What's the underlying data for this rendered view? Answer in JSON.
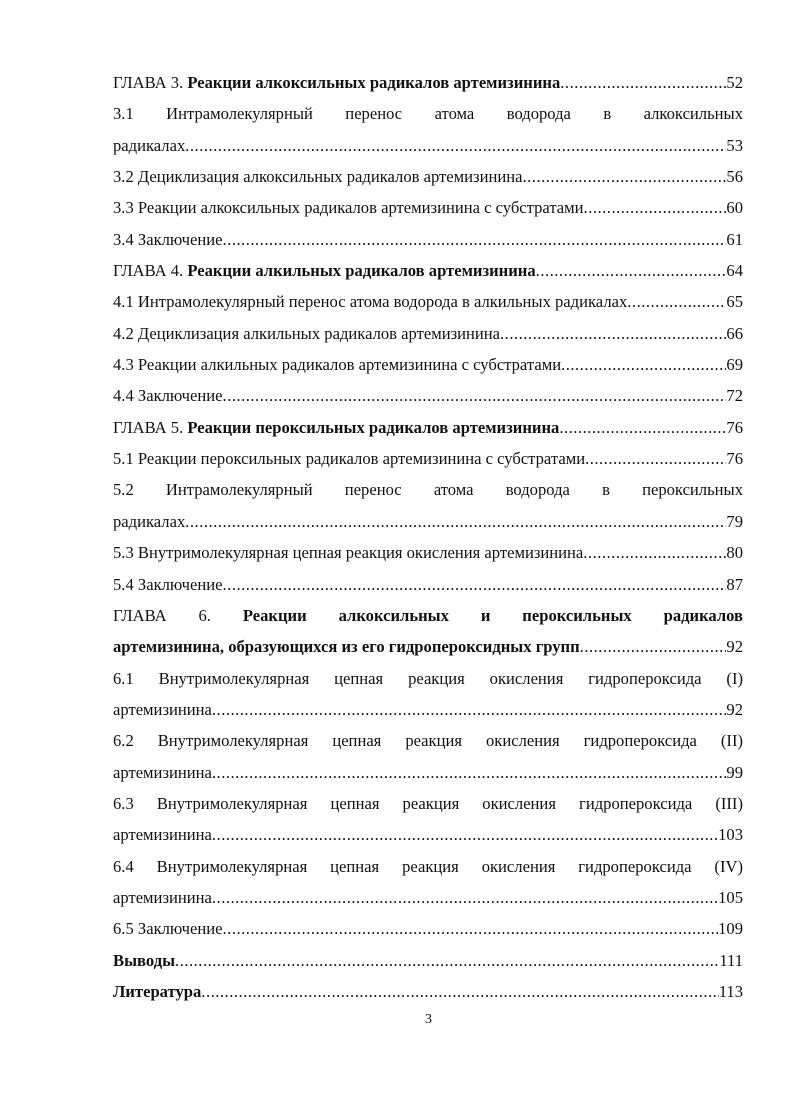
{
  "toc": [
    {
      "lines": [
        {
          "prefix": "ГЛАВА 3. ",
          "bold": "Реакции алкоксильных радикалов артемизинина "
        }
      ],
      "page": "52"
    },
    {
      "lines": [
        {
          "prefix": "3.1 Интрамолекулярный перенос атома водорода в алкоксильных"
        },
        {
          "prefix": "радикалах"
        }
      ],
      "page": "53"
    },
    {
      "lines": [
        {
          "prefix": "3.2 Дециклизация алкоксильных радикалов артемизинина"
        }
      ],
      "page": "56"
    },
    {
      "lines": [
        {
          "prefix": "3.3 Реакции алкоксильных радикалов артемизинина с субстратами"
        }
      ],
      "page": "60"
    },
    {
      "lines": [
        {
          "prefix": "3.4 Заключение"
        }
      ],
      "page": "61"
    },
    {
      "lines": [
        {
          "prefix": "ГЛАВА 4. ",
          "bold": "Реакции алкильных радикалов артемизинина "
        }
      ],
      "page": "64"
    },
    {
      "lines": [
        {
          "prefix": "4.1 Интрамолекулярный перенос атома водорода в алкильных радикалах"
        }
      ],
      "page": "65"
    },
    {
      "lines": [
        {
          "prefix": "4.2 Дециклизация алкильных радикалов артемизинина"
        }
      ],
      "page": "66"
    },
    {
      "lines": [
        {
          "prefix": "4.3 Реакции алкильных радикалов артемизинина с субстратами"
        }
      ],
      "page": "69"
    },
    {
      "lines": [
        {
          "prefix": "4.4 Заключение"
        }
      ],
      "page": "72"
    },
    {
      "lines": [
        {
          "prefix": "ГЛАВА 5. ",
          "bold": "Реакции пероксильных радикалов артемизинина "
        }
      ],
      "page": "76"
    },
    {
      "lines": [
        {
          "prefix": "5.1 Реакции пероксильных радикалов артемизинина с субстратами"
        }
      ],
      "page": "76"
    },
    {
      "lines": [
        {
          "prefix": "5.2 Интрамолекулярный перенос атома водорода в пероксильных"
        },
        {
          "prefix": "радикалах"
        }
      ],
      "page": "79"
    },
    {
      "lines": [
        {
          "prefix": "5.3 Внутримолекулярная цепная реакция окисления артемизинина"
        }
      ],
      "page": "80"
    },
    {
      "lines": [
        {
          "prefix": "5.4 Заключение"
        }
      ],
      "page": "87"
    },
    {
      "lines": [
        {
          "prefix": "ГЛАВА 6. ",
          "bold": "Реакции алкоксильных и пероксильных радикалов"
        },
        {
          "prefix": "",
          "bold": "артемизинина, образующихся из его гидропероксидных групп "
        }
      ],
      "page": "92"
    },
    {
      "lines": [
        {
          "prefix": "6.1 Внутримолекулярная цепная реакция окисления гидропероксида (I)"
        },
        {
          "prefix": "артемизинина"
        }
      ],
      "page": "92"
    },
    {
      "lines": [
        {
          "prefix": "6.2 Внутримолекулярная цепная реакция окисления гидропероксида (II)"
        },
        {
          "prefix": "артемизинина"
        }
      ],
      "page": "99"
    },
    {
      "lines": [
        {
          "prefix": "6.3 Внутримолекулярная цепная реакция окисления гидропероксида (III)"
        },
        {
          "prefix": "артемизинина"
        }
      ],
      "page": "103"
    },
    {
      "lines": [
        {
          "prefix": "6.4 Внутримолекулярная цепная реакция окисления гидропероксида (IV)"
        },
        {
          "prefix": "артемизинина"
        }
      ],
      "page": "105"
    },
    {
      "lines": [
        {
          "prefix": "6.5 Заключение"
        }
      ],
      "page": "109"
    },
    {
      "lines": [
        {
          "prefix": "",
          "bold": "Выводы"
        }
      ],
      "page": "111"
    },
    {
      "lines": [
        {
          "prefix": "",
          "bold": "Литература"
        }
      ],
      "page": "113"
    }
  ],
  "page_number": "3"
}
